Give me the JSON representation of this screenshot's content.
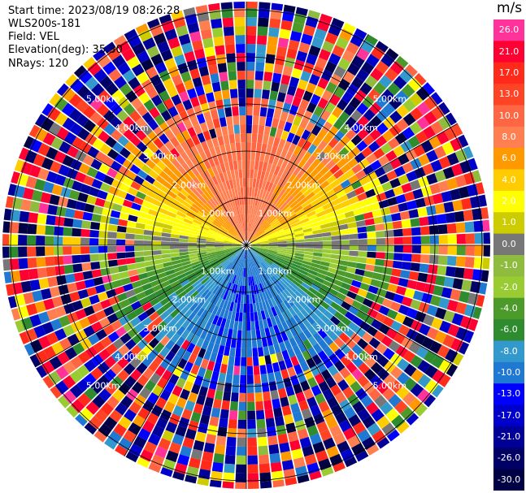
{
  "header": {
    "start_time": "Start time: 2023/08/19 08:26:28",
    "site": "WLS200s-181",
    "field": "Field: VEL",
    "elevation": "Elevation(deg): 35.30",
    "nrays": "NRays: 120"
  },
  "colorbar": {
    "unit": "m/s",
    "levels": [
      {
        "label": "26.0",
        "color": "#ff3399"
      },
      {
        "label": "21.0",
        "color": "#ff0033"
      },
      {
        "label": "17.0",
        "color": "#ff2a1a"
      },
      {
        "label": "13.0",
        "color": "#ff4426"
      },
      {
        "label": "10.0",
        "color": "#ff6644"
      },
      {
        "label": "8.0",
        "color": "#ff7f50"
      },
      {
        "label": "6.0",
        "color": "#ff9900"
      },
      {
        "label": "4.0",
        "color": "#ffcc00"
      },
      {
        "label": "2.0",
        "color": "#ffff00"
      },
      {
        "label": "1.0",
        "color": "#cccc00"
      },
      {
        "label": "0.0",
        "color": "#777777"
      },
      {
        "label": "-1.0",
        "color": "#8fbc3f"
      },
      {
        "label": "-2.0",
        "color": "#99cc33"
      },
      {
        "label": "-4.0",
        "color": "#4c9a2a"
      },
      {
        "label": "-6.0",
        "color": "#2e8b2e"
      },
      {
        "label": "-8.0",
        "color": "#3399cc"
      },
      {
        "label": "-10.0",
        "color": "#1f78d1"
      },
      {
        "label": "-13.0",
        "color": "#0000ff"
      },
      {
        "label": "-17.0",
        "color": "#0000cc"
      },
      {
        "label": "-21.0",
        "color": "#000099"
      },
      {
        "label": "-26.0",
        "color": "#000066"
      },
      {
        "label": "-30.0",
        "color": "#000044"
      }
    ]
  },
  "chart_data": {
    "type": "heatmap",
    "projection": "polar",
    "field": "VEL",
    "unit": "m/s",
    "nrays": 120,
    "range_rings_km": [
      1,
      2,
      3,
      4,
      5
    ],
    "ring_labels": [
      "1.00km",
      "2.00km",
      "3.00km",
      "4.00km",
      "5.00km"
    ],
    "value_range": [
      -30.0,
      26.0
    ],
    "spokes_deg": [
      0,
      30,
      60,
      90,
      120,
      150,
      180,
      210,
      240,
      270,
      300,
      330
    ],
    "sector_mean_velocity_ms": [
      {
        "azimuth_deg": 0,
        "value": 9.0
      },
      {
        "azimuth_deg": 45,
        "value": 5.0
      },
      {
        "azimuth_deg": 90,
        "value": 0.0
      },
      {
        "azimuth_deg": 135,
        "value": -5.0
      },
      {
        "azimuth_deg": 180,
        "value": -9.0
      },
      {
        "azimuth_deg": 225,
        "value": -5.0
      },
      {
        "azimuth_deg": 270,
        "value": 0.0
      },
      {
        "azimuth_deg": 315,
        "value": 5.0
      }
    ],
    "grid": true
  }
}
